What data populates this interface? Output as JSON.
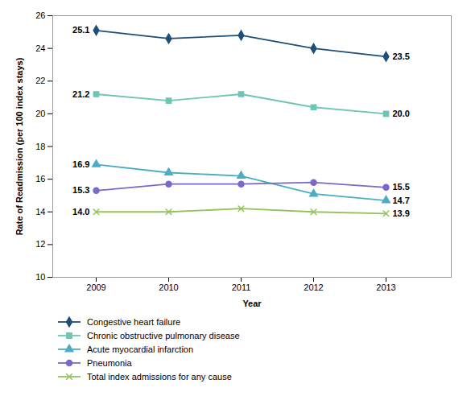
{
  "chart_data": {
    "type": "line",
    "x": [
      2009,
      2010,
      2011,
      2012,
      2013
    ],
    "series": [
      {
        "name": "Congestive heart failure",
        "color": "#1f4e79",
        "marker": "diamond",
        "values": [
          25.1,
          24.6,
          24.8,
          24.0,
          23.5
        ],
        "value_labels": [
          "25.1",
          null,
          null,
          null,
          "23.5"
        ]
      },
      {
        "name": "Chronic obstructive pulmonary disease",
        "color": "#70c4b4",
        "marker": "square",
        "values": [
          21.2,
          20.8,
          21.2,
          20.4,
          20.0
        ],
        "value_labels": [
          "21.2",
          null,
          null,
          null,
          "20.0"
        ]
      },
      {
        "name": "Acute myocardial infarction",
        "color": "#4bacc6",
        "marker": "triangle",
        "values": [
          16.9,
          16.4,
          16.2,
          15.1,
          14.7
        ],
        "value_labels": [
          "16.9",
          null,
          null,
          null,
          "14.7"
        ]
      },
      {
        "name": "Pneumonia",
        "color": "#7b68c8",
        "marker": "circle",
        "values": [
          15.3,
          15.7,
          15.7,
          15.8,
          15.5
        ],
        "value_labels": [
          "15.3",
          null,
          null,
          null,
          "15.5"
        ]
      },
      {
        "name": "Total index admissions for any cause",
        "color": "#92c45e",
        "marker": "x",
        "values": [
          14.0,
          14.0,
          14.2,
          14.0,
          13.9
        ],
        "value_labels": [
          "14.0",
          null,
          null,
          null,
          "13.9"
        ]
      }
    ],
    "xlabel": "Year",
    "ylabel": "Rate of Readmission (per 100 index stays)",
    "xlim": [
      2008.4,
      2013.9
    ],
    "xticks": [
      2009,
      2010,
      2011,
      2012,
      2013
    ],
    "ylim": [
      10,
      26
    ],
    "yticks": [
      10,
      12,
      14,
      16,
      18,
      20,
      22,
      24,
      26
    ],
    "data_labels": true,
    "grid": false,
    "legend": "bottom"
  }
}
